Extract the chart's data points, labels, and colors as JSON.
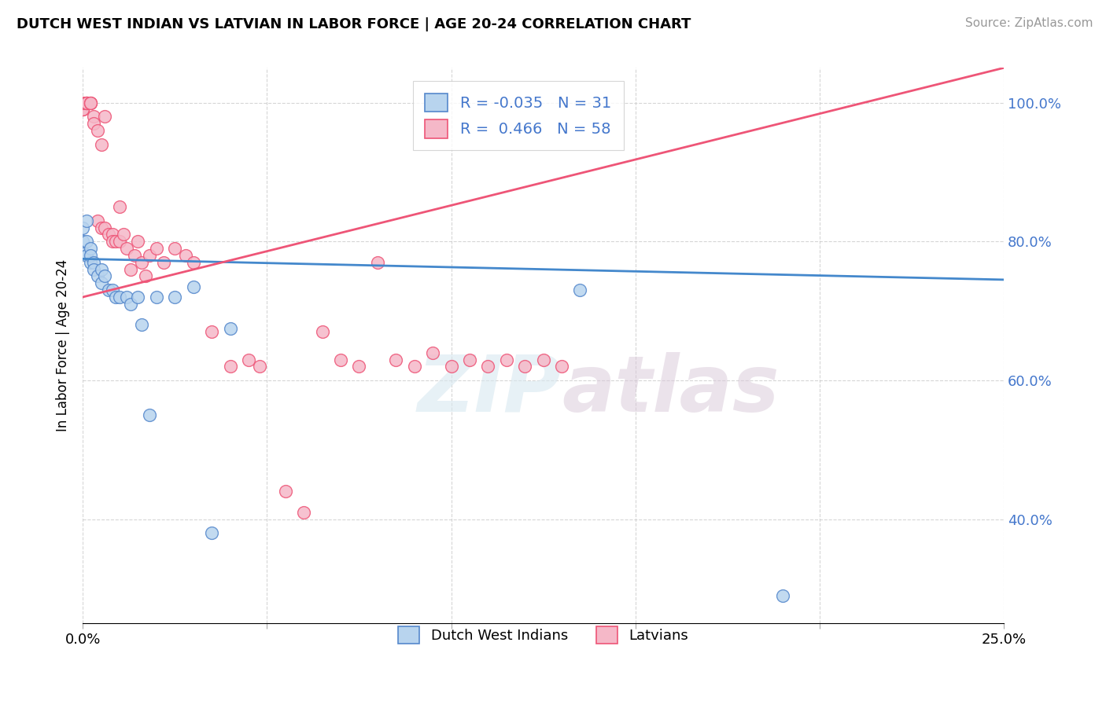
{
  "title": "DUTCH WEST INDIAN VS LATVIAN IN LABOR FORCE | AGE 20-24 CORRELATION CHART",
  "source": "Source: ZipAtlas.com",
  "ylabel": "In Labor Force | Age 20-24",
  "xlim": [
    0.0,
    0.25
  ],
  "ylim": [
    0.25,
    1.05
  ],
  "blue_R": -0.035,
  "blue_N": 31,
  "pink_R": 0.466,
  "pink_N": 58,
  "blue_color": "#b8d4ee",
  "pink_color": "#f5b8c8",
  "blue_edge_color": "#5588cc",
  "pink_edge_color": "#ee5577",
  "blue_line_color": "#4488cc",
  "pink_line_color": "#ee5577",
  "watermark_zip": "ZIP",
  "watermark_atlas": "atlas",
  "blue_x": [
    0.0,
    0.0,
    0.0,
    0.001,
    0.001,
    0.001,
    0.002,
    0.002,
    0.002,
    0.003,
    0.003,
    0.004,
    0.005,
    0.005,
    0.006,
    0.007,
    0.008,
    0.009,
    0.01,
    0.012,
    0.013,
    0.015,
    0.016,
    0.018,
    0.02,
    0.025,
    0.03,
    0.035,
    0.04,
    0.135,
    0.19
  ],
  "blue_y": [
    0.785,
    0.8,
    0.82,
    0.78,
    0.8,
    0.83,
    0.77,
    0.79,
    0.78,
    0.77,
    0.76,
    0.75,
    0.74,
    0.76,
    0.75,
    0.73,
    0.73,
    0.72,
    0.72,
    0.72,
    0.71,
    0.72,
    0.68,
    0.55,
    0.72,
    0.72,
    0.735,
    0.38,
    0.675,
    0.73,
    0.29
  ],
  "pink_x": [
    0.0,
    0.0,
    0.0,
    0.0,
    0.001,
    0.001,
    0.001,
    0.001,
    0.002,
    0.002,
    0.002,
    0.003,
    0.003,
    0.004,
    0.004,
    0.005,
    0.005,
    0.006,
    0.006,
    0.007,
    0.008,
    0.008,
    0.009,
    0.01,
    0.01,
    0.011,
    0.012,
    0.013,
    0.014,
    0.015,
    0.016,
    0.017,
    0.018,
    0.02,
    0.022,
    0.025,
    0.028,
    0.03,
    0.035,
    0.04,
    0.045,
    0.048,
    0.055,
    0.06,
    0.065,
    0.07,
    0.075,
    0.08,
    0.085,
    0.09,
    0.095,
    0.1,
    0.105,
    0.11,
    0.115,
    0.12,
    0.125,
    0.13
  ],
  "pink_y": [
    0.99,
    0.99,
    0.99,
    1.0,
    1.0,
    1.0,
    1.0,
    1.0,
    1.0,
    1.0,
    1.0,
    0.98,
    0.97,
    0.96,
    0.83,
    0.94,
    0.82,
    0.82,
    0.98,
    0.81,
    0.81,
    0.8,
    0.8,
    0.85,
    0.8,
    0.81,
    0.79,
    0.76,
    0.78,
    0.8,
    0.77,
    0.75,
    0.78,
    0.79,
    0.77,
    0.79,
    0.78,
    0.77,
    0.67,
    0.62,
    0.63,
    0.62,
    0.44,
    0.41,
    0.67,
    0.63,
    0.62,
    0.77,
    0.63,
    0.62,
    0.64,
    0.62,
    0.63,
    0.62,
    0.63,
    0.62,
    0.63,
    0.62
  ],
  "blue_trend_x": [
    0.0,
    0.25
  ],
  "blue_trend_y": [
    0.775,
    0.745
  ],
  "pink_trend_x": [
    0.0,
    0.25
  ],
  "pink_trend_y": [
    0.72,
    1.05
  ]
}
